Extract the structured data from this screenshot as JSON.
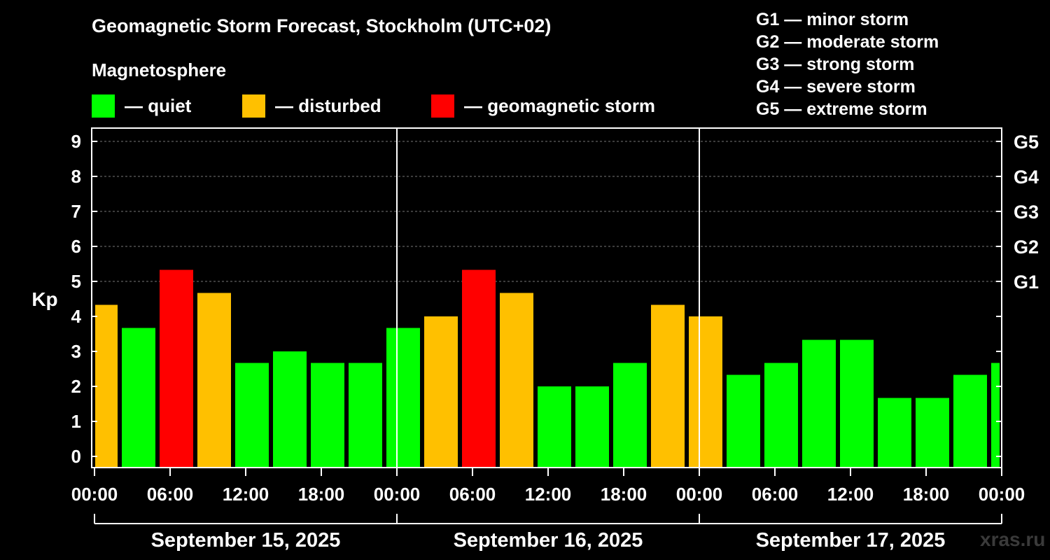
{
  "chart_data": {
    "type": "bar",
    "title": "Geomagnetic Storm Forecast, Stockholm (UTC+02)",
    "subtitle": "Magnetosphere",
    "ylabel": "Kp",
    "ylim": [
      0,
      9
    ],
    "yticks": [
      "0",
      "1",
      "2",
      "3",
      "4",
      "5",
      "6",
      "7",
      "8",
      "9"
    ],
    "right_ticks": [
      {
        "kp": 5,
        "label": "G1"
      },
      {
        "kp": 6,
        "label": "G2"
      },
      {
        "kp": 7,
        "label": "G3"
      },
      {
        "kp": 8,
        "label": "G4"
      },
      {
        "kp": 9,
        "label": "G5"
      }
    ],
    "xticks": [
      "00:00",
      "06:00",
      "12:00",
      "18:00",
      "00:00",
      "06:00",
      "12:00",
      "18:00",
      "00:00",
      "06:00",
      "12:00",
      "18:00",
      "00:00"
    ],
    "days": [
      "September 15, 2025",
      "September 16, 2025",
      "September 17, 2025"
    ],
    "values": [
      4.33,
      3.67,
      5.33,
      4.67,
      2.67,
      3.0,
      2.67,
      2.67,
      3.67,
      4.0,
      5.33,
      4.67,
      2.0,
      2.0,
      2.67,
      4.33,
      4.0,
      2.33,
      2.67,
      3.33,
      3.33,
      1.67,
      1.67,
      2.33,
      2.67
    ],
    "levels": [
      "disturbed",
      "quiet",
      "storm",
      "disturbed",
      "quiet",
      "quiet",
      "quiet",
      "quiet",
      "quiet",
      "disturbed",
      "storm",
      "disturbed",
      "quiet",
      "quiet",
      "quiet",
      "disturbed",
      "disturbed",
      "quiet",
      "quiet",
      "quiet",
      "quiet",
      "quiet",
      "quiet",
      "quiet",
      "quiet"
    ],
    "legend": [
      {
        "key": "quiet",
        "label": "— quiet",
        "color": "#00ff00"
      },
      {
        "key": "disturbed",
        "label": "— disturbed",
        "color": "#ffc000"
      },
      {
        "key": "storm",
        "label": "— geomagnetic storm",
        "color": "#ff0000"
      }
    ],
    "g_scale": [
      "G1 — minor storm",
      "G2 — moderate storm",
      "G3 — strong storm",
      "G4 — severe storm",
      "G5 — extreme storm"
    ]
  },
  "watermark": "xras.ru"
}
